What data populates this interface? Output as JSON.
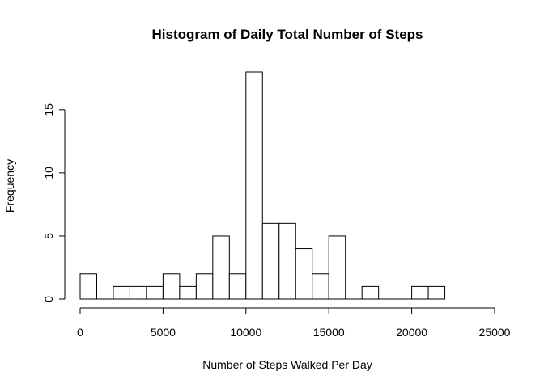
{
  "chart_data": {
    "type": "bar",
    "title": "Histogram of Daily Total Number of Steps",
    "xlabel": "Number of Steps Walked Per Day",
    "ylabel": "Frequency",
    "bin_width": 1000,
    "bins": [
      {
        "start": 0,
        "end": 1000,
        "count": 2
      },
      {
        "start": 1000,
        "end": 2000,
        "count": 0
      },
      {
        "start": 2000,
        "end": 3000,
        "count": 1
      },
      {
        "start": 3000,
        "end": 4000,
        "count": 1
      },
      {
        "start": 4000,
        "end": 5000,
        "count": 1
      },
      {
        "start": 5000,
        "end": 6000,
        "count": 2
      },
      {
        "start": 6000,
        "end": 7000,
        "count": 1
      },
      {
        "start": 7000,
        "end": 8000,
        "count": 2
      },
      {
        "start": 8000,
        "end": 9000,
        "count": 5
      },
      {
        "start": 9000,
        "end": 10000,
        "count": 2
      },
      {
        "start": 10000,
        "end": 11000,
        "count": 18
      },
      {
        "start": 11000,
        "end": 12000,
        "count": 6
      },
      {
        "start": 12000,
        "end": 13000,
        "count": 6
      },
      {
        "start": 13000,
        "end": 14000,
        "count": 4
      },
      {
        "start": 14000,
        "end": 15000,
        "count": 2
      },
      {
        "start": 15000,
        "end": 16000,
        "count": 5
      },
      {
        "start": 16000,
        "end": 17000,
        "count": 0
      },
      {
        "start": 17000,
        "end": 18000,
        "count": 1
      },
      {
        "start": 18000,
        "end": 19000,
        "count": 0
      },
      {
        "start": 19000,
        "end": 20000,
        "count": 0
      },
      {
        "start": 20000,
        "end": 21000,
        "count": 1
      },
      {
        "start": 21000,
        "end": 22000,
        "count": 1
      }
    ],
    "xlim": [
      0,
      25000
    ],
    "ylim": [
      0,
      18
    ],
    "x_ticks": [
      0,
      5000,
      10000,
      15000,
      20000,
      25000
    ],
    "y_ticks": [
      0,
      5,
      10,
      15
    ],
    "bar_fill": "#ffffff",
    "bar_stroke": "#000000",
    "grid": false,
    "legend": "none"
  }
}
